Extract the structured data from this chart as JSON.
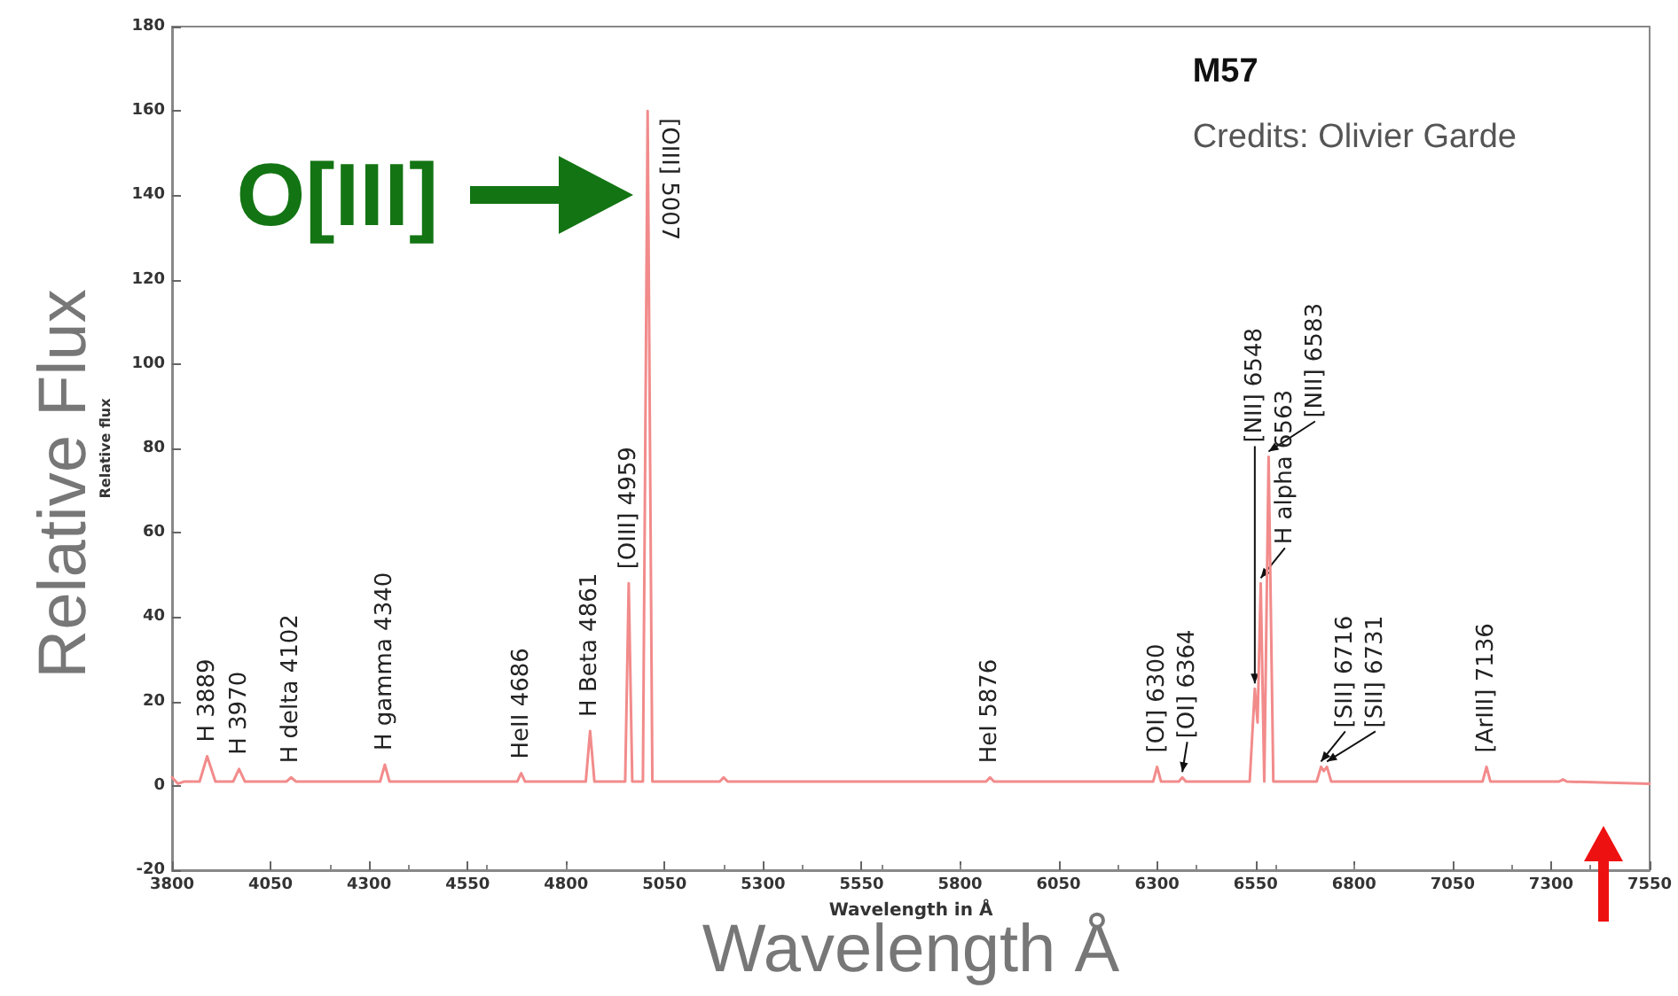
{
  "chart_data": {
    "type": "line",
    "title": "M57",
    "subtitle": "Credits: Olivier Garde",
    "xlabel": "Wavelength in Å",
    "ylabel": "Relative flux",
    "xlim": [
      3800,
      7550
    ],
    "xticks": [
      3800,
      4050,
      4300,
      4550,
      4800,
      5050,
      5300,
      5550,
      5800,
      6050,
      6300,
      6550,
      6800,
      7050,
      7300,
      7550
    ],
    "ylim": [
      -20,
      180
    ],
    "yticks": [
      -20,
      0,
      20,
      40,
      60,
      80,
      100,
      120,
      140,
      160,
      180
    ],
    "grid": false,
    "marker": "none",
    "line_style": "solid",
    "series": [
      {
        "color": "#f28b8b",
        "x": [
          3800,
          3815,
          3830,
          3870,
          3889,
          3910,
          3955,
          3970,
          3985,
          4090,
          4102,
          4115,
          4328,
          4340,
          4352,
          4676,
          4686,
          4696,
          4850,
          4861,
          4872,
          4950,
          4959,
          4968,
          4995,
          5007,
          5019,
          5190,
          5200,
          5210,
          5866,
          5876,
          5886,
          6290,
          6300,
          6310,
          6355,
          6364,
          6373,
          6535,
          6548,
          6555,
          6563,
          6572,
          6575,
          6583,
          6595,
          6705,
          6716,
          6723,
          6731,
          6742,
          7126,
          7136,
          7146,
          7320,
          7330,
          7340,
          7550
        ],
        "values": [
          2,
          0.5,
          1,
          1,
          7,
          1,
          1,
          4,
          1,
          1,
          2,
          1,
          1,
          5,
          1,
          1,
          3,
          1,
          1,
          13,
          1,
          1,
          48,
          1,
          1,
          160,
          1,
          1,
          2,
          1,
          1,
          2,
          1,
          1,
          4.5,
          1,
          1,
          2,
          1,
          1,
          23,
          15,
          48,
          1,
          1,
          78,
          1,
          1,
          4.5,
          3.5,
          4.5,
          1,
          1,
          4.5,
          1,
          1,
          1.5,
          1,
          0.5
        ]
      }
    ],
    "annotations": [
      "Relative Flux",
      "Wavelength Å",
      {
        "text": "O[III]",
        "x": 5007,
        "y": 140
      },
      {
        "text": "H 3889",
        "x": 3889,
        "y": 7
      },
      {
        "text": "H 3970",
        "x": 3970,
        "y": 4
      },
      {
        "text": "H delta 4102",
        "x": 4102,
        "y": 2
      },
      {
        "text": "H gamma 4340",
        "x": 4340,
        "y": 5
      },
      {
        "text": "HeII 4686",
        "x": 4686,
        "y": 3
      },
      {
        "text": "H Beta 4861",
        "x": 4861,
        "y": 13
      },
      {
        "text": "[OIII] 4959",
        "x": 4959,
        "y": 48
      },
      {
        "text": "[OIII] 5007",
        "x": 5007,
        "y": 160
      },
      {
        "text": "HeI 5876",
        "x": 5876,
        "y": 2
      },
      {
        "text": "[OI] 6300",
        "x": 6300,
        "y": 4.5
      },
      {
        "text": "[OI] 6364",
        "x": 6364,
        "y": 2
      },
      {
        "text": "[NII] 6548",
        "x": 6548,
        "y": 23
      },
      {
        "text": "H alpha 6563",
        "x": 6563,
        "y": 48
      },
      {
        "text": "[NII] 6583",
        "x": 6583,
        "y": 78
      },
      {
        "text": "[SII] 6716",
        "x": 6716,
        "y": 4.5
      },
      {
        "text": "[SII] 6731",
        "x": 6731,
        "y": 4.5
      },
      {
        "text": "[ArIII] 7136",
        "x": 7136,
        "y": 4.5
      }
    ]
  }
}
